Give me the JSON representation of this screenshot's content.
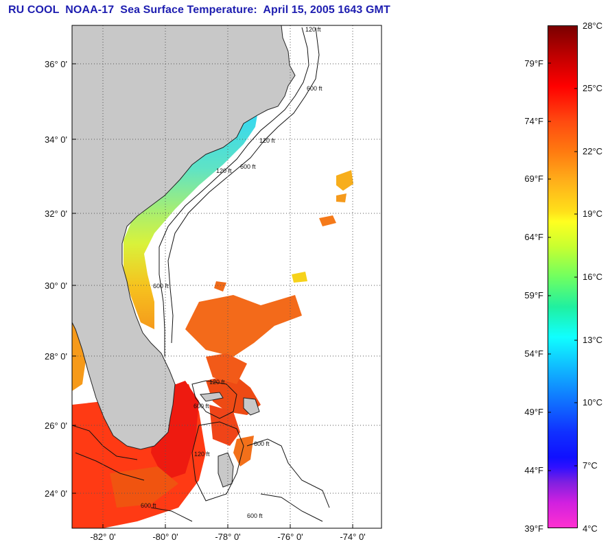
{
  "title": "RU COOL  NOAA-17  Sea Surface Temperature:  April 15, 2005 1643 GMT",
  "map": {
    "lat_labels": [
      "36° 0'",
      "34° 0'",
      "32° 0'",
      "30° 0'",
      "28° 0'",
      "26° 0'",
      "24° 0'"
    ],
    "lon_labels": [
      "-82° 0'",
      "-80° 0'",
      "-78° 0'",
      "-76° 0'",
      "-74° 0'"
    ],
    "contour_labels": [
      "120 ft",
      "600 ft",
      "120 ft",
      "120 ft",
      "600 ft",
      "600 ft",
      "120 ft",
      "600 ft",
      "600 ft",
      "600 ft",
      "120 ft",
      "600 ft"
    ],
    "colors": {
      "land": "#c8c8c8",
      "ocean": "#ffffff",
      "grid": "#333333"
    }
  },
  "colorbar": {
    "celsius_labels": [
      "28°C",
      "25°C",
      "22°C",
      "19°C",
      "16°C",
      "13°C",
      "10°C",
      "7°C",
      "4°C"
    ],
    "fahrenheit_labels": [
      "79°F",
      "74°F",
      "69°F",
      "64°F",
      "59°F",
      "54°F",
      "49°F",
      "44°F",
      "39°F"
    ]
  }
}
